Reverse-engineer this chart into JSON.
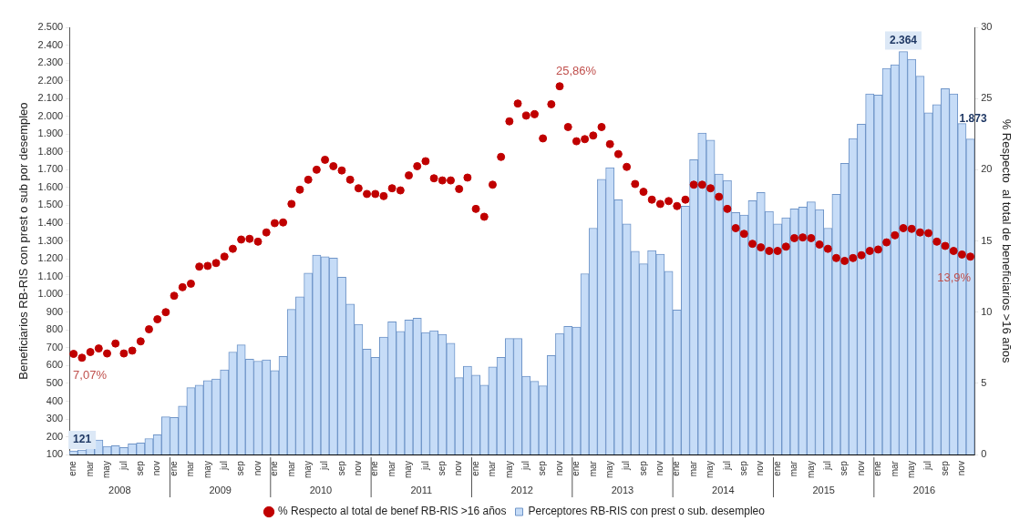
{
  "chart_data": {
    "type": "bar",
    "ylabel": "Beneficiarios RB-RIS con prest o sub por desempleo",
    "y2label": "% Respecto  al total de beneficiarios >16 años",
    "categories": [
      "ene",
      null,
      "mar",
      null,
      "may",
      null,
      "jul",
      null,
      "sep",
      null,
      "nov",
      null,
      "ene",
      null,
      "mar",
      null,
      "may",
      null,
      "jul",
      null,
      "sep",
      null,
      "nov",
      null,
      "ene",
      null,
      "mar",
      null,
      "may",
      null,
      "jul",
      null,
      "sep",
      null,
      "nov",
      null,
      "ene",
      null,
      "mar",
      null,
      "may",
      null,
      "jul",
      null,
      "sep",
      null,
      "nov",
      null,
      "ene",
      null,
      "mar",
      null,
      "may",
      null,
      "jul",
      null,
      "sep",
      null,
      "nov",
      null,
      "ene",
      null,
      "mar",
      null,
      "may",
      null,
      "jul",
      null,
      "sep",
      null,
      "nov",
      null,
      "ene",
      null,
      "mar",
      null,
      "may",
      null,
      "jul",
      null,
      "sep",
      null,
      "nov",
      null,
      "ene",
      null,
      "mar",
      null,
      "may",
      null,
      "jul",
      null,
      "sep",
      null,
      "nov",
      null,
      "ene",
      null,
      "mar",
      null,
      "may",
      null,
      "jul",
      null,
      "sep",
      null,
      "nov",
      null
    ],
    "series": [
      {
        "name": "Perceptores RB-RIS con prest o sub. desempleo",
        "type": "bar",
        "color": "#c6dcf7",
        "values": [
          121,
          126,
          135,
          182,
          146,
          150,
          140,
          160,
          165,
          190,
          212,
          312,
          308,
          372,
          476,
          490,
          516,
          525,
          576,
          676,
          716,
          636,
          625,
          632,
          572,
          652,
          916,
          986,
          1120,
          1220,
          1212,
          1204,
          1096,
          946,
          832,
          692,
          646,
          760,
          846,
          792,
          856,
          866,
          786,
          796,
          776,
          726,
          532,
          596,
          546,
          490,
          592,
          646,
          752,
          752,
          540,
          512,
          486,
          656,
          780,
          820,
          816,
          1116,
          1372,
          1646,
          1712,
          1532,
          1396,
          1242,
          1172,
          1246,
          1226,
          1130,
          912,
          1496,
          1756,
          1906,
          1866,
          1676,
          1640,
          1460,
          1446,
          1526,
          1572,
          1466,
          1396,
          1430,
          1480,
          1490,
          1520,
          1476,
          1372,
          1562,
          1736,
          1876,
          1956,
          2126,
          2120,
          2270,
          2290,
          2364,
          2320,
          2226,
          2020,
          2066,
          2156,
          2126,
          1960,
          1873
        ],
        "value_labels": [
          "121",
          null,
          null,
          null,
          null,
          null,
          null,
          null,
          null,
          null,
          null,
          null,
          null,
          null,
          null,
          null,
          null,
          null,
          null,
          null,
          null,
          null,
          null,
          null,
          null,
          null,
          null,
          null,
          null,
          null,
          null,
          null,
          null,
          null,
          null,
          null,
          null,
          null,
          null,
          null,
          null,
          null,
          null,
          null,
          null,
          null,
          null,
          null,
          null,
          null,
          null,
          null,
          null,
          null,
          null,
          null,
          null,
          null,
          null,
          null,
          null,
          null,
          null,
          null,
          null,
          null,
          null,
          null,
          null,
          null,
          null,
          null,
          null,
          null,
          null,
          null,
          null,
          null,
          null,
          null,
          null,
          null,
          null,
          null,
          null,
          null,
          null,
          null,
          null,
          null,
          null,
          null,
          null,
          null,
          null,
          null,
          null,
          null,
          null,
          "2.364",
          null,
          null,
          null,
          null,
          null,
          null,
          null,
          "1.873"
        ]
      },
      {
        "name": "% Respecto al total de benef RB-RIS >16 años",
        "type": "scatter",
        "axis": "y2",
        "color": "#c00000",
        "values": [
          7.07,
          6.8,
          7.2,
          7.45,
          7.1,
          7.8,
          7.1,
          7.3,
          7.95,
          8.8,
          9.5,
          10.0,
          11.15,
          11.75,
          12.0,
          13.2,
          13.25,
          13.45,
          13.9,
          14.45,
          15.1,
          15.15,
          14.95,
          15.6,
          16.25,
          16.3,
          17.6,
          18.6,
          19.3,
          20.0,
          20.7,
          20.25,
          19.95,
          19.3,
          18.7,
          18.3,
          18.3,
          18.15,
          18.7,
          18.55,
          19.6,
          20.25,
          20.6,
          19.4,
          19.25,
          19.25,
          18.65,
          19.45,
          17.25,
          16.7,
          18.95,
          20.9,
          23.4,
          24.65,
          23.8,
          23.9,
          22.2,
          24.6,
          25.86,
          23.0,
          22.0,
          22.15,
          22.4,
          23.0,
          21.8,
          21.1,
          20.2,
          19.0,
          18.45,
          17.9,
          17.6,
          17.8,
          17.45,
          17.9,
          18.95,
          18.95,
          18.7,
          18.1,
          17.25,
          15.9,
          15.5,
          14.8,
          14.55,
          14.3,
          14.3,
          14.6,
          15.2,
          15.25,
          15.2,
          14.75,
          14.45,
          13.8,
          13.6,
          13.8,
          14.0,
          14.3,
          14.4,
          14.9,
          15.4,
          15.9,
          15.85,
          15.6,
          15.55,
          14.95,
          14.65,
          14.3,
          14.05,
          13.9
        ],
        "value_labels": [
          "7,07%",
          null,
          null,
          null,
          null,
          null,
          null,
          null,
          null,
          null,
          null,
          null,
          null,
          null,
          null,
          null,
          null,
          null,
          null,
          null,
          null,
          null,
          null,
          null,
          null,
          null,
          null,
          null,
          null,
          null,
          null,
          null,
          null,
          null,
          null,
          null,
          null,
          null,
          null,
          null,
          null,
          null,
          null,
          null,
          null,
          null,
          null,
          null,
          null,
          null,
          null,
          null,
          null,
          null,
          null,
          null,
          null,
          null,
          "25,86%",
          null,
          null,
          null,
          null,
          null,
          null,
          null,
          null,
          null,
          null,
          null,
          null,
          null,
          null,
          null,
          null,
          null,
          null,
          null,
          null,
          null,
          null,
          null,
          null,
          null,
          null,
          null,
          null,
          null,
          null,
          null,
          null,
          null,
          null,
          null,
          null,
          null,
          null,
          null,
          null,
          null,
          null,
          null,
          null,
          null,
          null,
          null,
          null,
          "13,9%"
        ]
      }
    ],
    "ylim": [
      100,
      2500
    ],
    "yticks": [
      100,
      200,
      300,
      400,
      500,
      600,
      700,
      800,
      900,
      {
        "value": 1000,
        "label": "1.000"
      },
      {
        "value": 1100,
        "label": "1.100"
      },
      {
        "value": 1200,
        "label": "1.200"
      },
      {
        "value": 1300,
        "label": "1.300"
      },
      {
        "value": 1400,
        "label": "1.400"
      },
      {
        "value": 1500,
        "label": "1.500"
      },
      {
        "value": 1600,
        "label": "1.600"
      },
      {
        "value": 1700,
        "label": "1.700"
      },
      {
        "value": 1800,
        "label": "1.800"
      },
      {
        "value": 1900,
        "label": "1.900"
      },
      {
        "value": 2000,
        "label": "2.000"
      },
      {
        "value": 2100,
        "label": "2.100"
      },
      {
        "value": 2200,
        "label": "2.200"
      },
      {
        "value": 2300,
        "label": "2.300"
      },
      {
        "value": 2400,
        "label": "2.400"
      },
      {
        "value": 2500,
        "label": "2.500"
      }
    ],
    "y2lim": [
      0,
      30
    ],
    "y2ticks": [
      0,
      5,
      10,
      15,
      20,
      25,
      30
    ],
    "marker": "circle",
    "legend": "bottom",
    "grid": false,
    "annotations": [
      "2008",
      "2009",
      "2010",
      "2011",
      "2012",
      "2013",
      "2014",
      "2015",
      "2016"
    ]
  }
}
